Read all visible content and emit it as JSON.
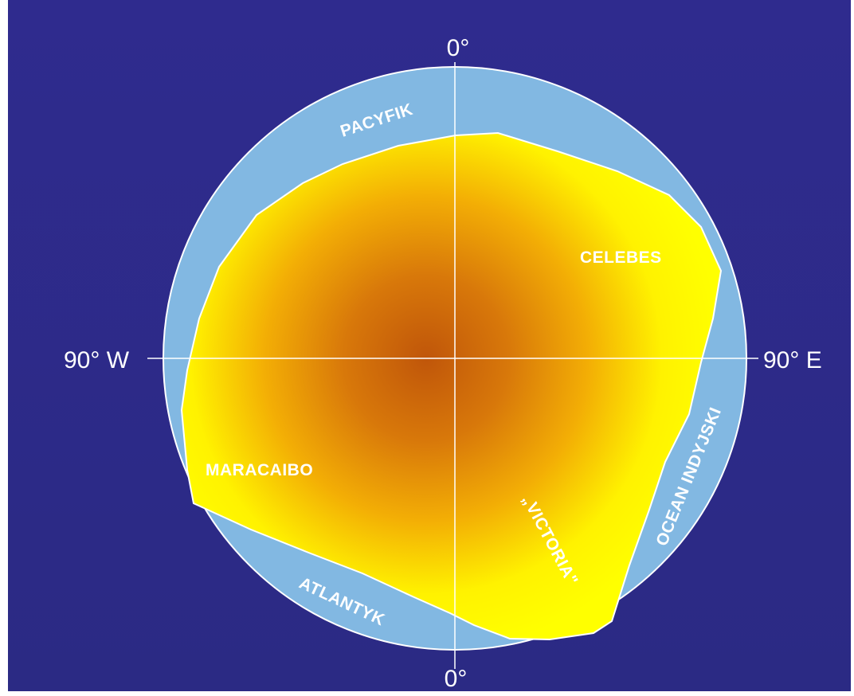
{
  "axes": {
    "top": "0°",
    "bottom": "0°",
    "left": "90° W",
    "right": "90° E"
  },
  "oceans": {
    "pacific": "PACYFIK",
    "atlantic": "ATLANTYK",
    "indian": "OCEAN INDYJSKI"
  },
  "places": {
    "celebes": "CELEBES",
    "maracaibo": "MARACAIBO",
    "victoria": "„VICTORIA\""
  },
  "colors": {
    "background": "#2e2c8c",
    "ocean": "#82b8e2",
    "land_edge": "#ffff00",
    "land_mid": "#f2a800",
    "land_center": "#c25a0a",
    "lines": "#ffffff"
  }
}
